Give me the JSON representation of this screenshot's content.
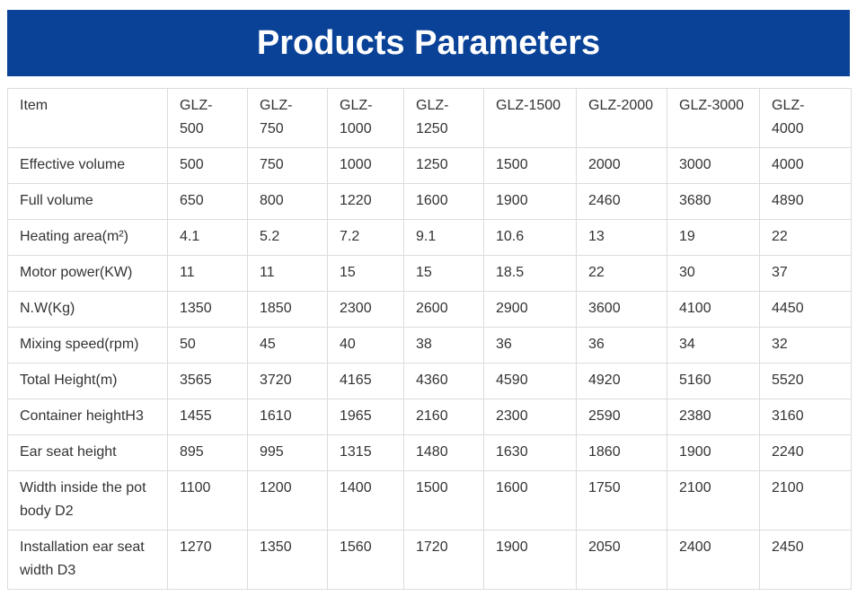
{
  "title": "Products Parameters",
  "table": {
    "header": [
      "Item",
      "GLZ-500",
      "GLZ-750",
      "GLZ-1000",
      "GLZ-1250",
      "GLZ-1500",
      "GLZ-2000",
      "GLZ-3000",
      "GLZ-4000"
    ],
    "rows": [
      [
        "Effective volume",
        500,
        750,
        1000,
        1250,
        1500,
        2000,
        3000,
        4000
      ],
      [
        "Full volume",
        650,
        800,
        1220,
        1600,
        1900,
        2460,
        3680,
        4890
      ],
      [
        "Heating area(m²)",
        4.1,
        5.2,
        7.2,
        9.1,
        10.6,
        13,
        19,
        22
      ],
      [
        "Motor power(KW)",
        11,
        11,
        15,
        15,
        18.5,
        22,
        30,
        37
      ],
      [
        "N.W(Kg)",
        1350,
        1850,
        2300,
        2600,
        2900,
        3600,
        4100,
        4450
      ],
      [
        "Mixing speed(rpm)",
        50,
        45,
        40,
        38,
        36,
        36,
        34,
        32
      ],
      [
        "Total Height(m)",
        3565,
        3720,
        4165,
        4360,
        4590,
        4920,
        5160,
        5520
      ],
      [
        "Container heightH3",
        1455,
        1610,
        1965,
        2160,
        2300,
        2590,
        2380,
        3160
      ],
      [
        "Ear seat height",
        895,
        995,
        1315,
        1480,
        1630,
        1860,
        1900,
        2240
      ],
      [
        "Width inside the pot body D2",
        1100,
        1200,
        1400,
        1500,
        1600,
        1750,
        2100,
        2100
      ],
      [
        "Installation ear seat width D3",
        1270,
        1350,
        1560,
        1720,
        1900,
        2050,
        2400,
        2450
      ]
    ]
  }
}
